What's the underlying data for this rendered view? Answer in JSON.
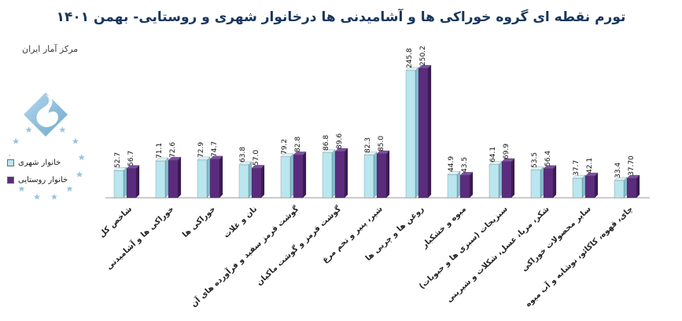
{
  "title": "تورم نقطه ای گروه خوراکی ها و آشامیدنی ها درخانوار شهری و روستایی- بهمن ۱۴۰۱",
  "source": "مرکز آمار ایران",
  "legend": {
    "urban": {
      "label": "خانوار شهری",
      "color": "#b9e6ef"
    },
    "rural": {
      "label": "خانوار روستایی",
      "color": "#5b2c7e"
    }
  },
  "chart_data": {
    "type": "bar",
    "title": "تورم نقطه ای گروه خوراکی ها و آشامیدنی ها درخانوار شهری و روستایی- بهمن ۱۴۰۱",
    "xlabel": "",
    "ylabel": "",
    "ylim": [
      0,
      260
    ],
    "grid": false,
    "legend_position": "left",
    "bar_style": "3d-clustered",
    "categories": [
      "شاخص کل",
      "خوراکی ها و آشامیدنی",
      "خوراکی ها",
      "نان و غلات",
      "گوشت قرمز سفید و فرآورده های آن",
      "گوشت قرمز و گوشت ماکیان",
      "شیر، پنیر و تخم مرغ",
      "روغن ها و چربی ها",
      "میوه و خشکبار",
      "سبزیجات (سبزی ها و حبوبات)",
      "شکر، مربا، عسل، شکلات و شیرینی",
      "سایر محصولات خوراکی",
      "چای، قهوه، کاکائو، نوشابه و آب میوه"
    ],
    "series": [
      {
        "name": "خانوار شهری",
        "color_face": "#b9e6ef",
        "color_top": "#daf4f9",
        "color_side": "#83bfd0",
        "values": [
          "52.7",
          "71.1",
          "72.9",
          "63.8",
          "79.2",
          "86.8",
          "82.3",
          "245.8",
          "44.9",
          "64.1",
          "53.5",
          "37.7",
          "33.4"
        ]
      },
      {
        "name": "خانوار روستایی",
        "color_face": "#5b2c7e",
        "color_top": "#7d4fa0",
        "color_side": "#3b1a54",
        "values": [
          "56.7",
          "72.6",
          "74.7",
          "57.0",
          "82.8",
          "89.6",
          "85.0",
          "250.2",
          "43.5",
          "69.9",
          "56.4",
          "42.1",
          "37.70"
        ]
      }
    ]
  }
}
